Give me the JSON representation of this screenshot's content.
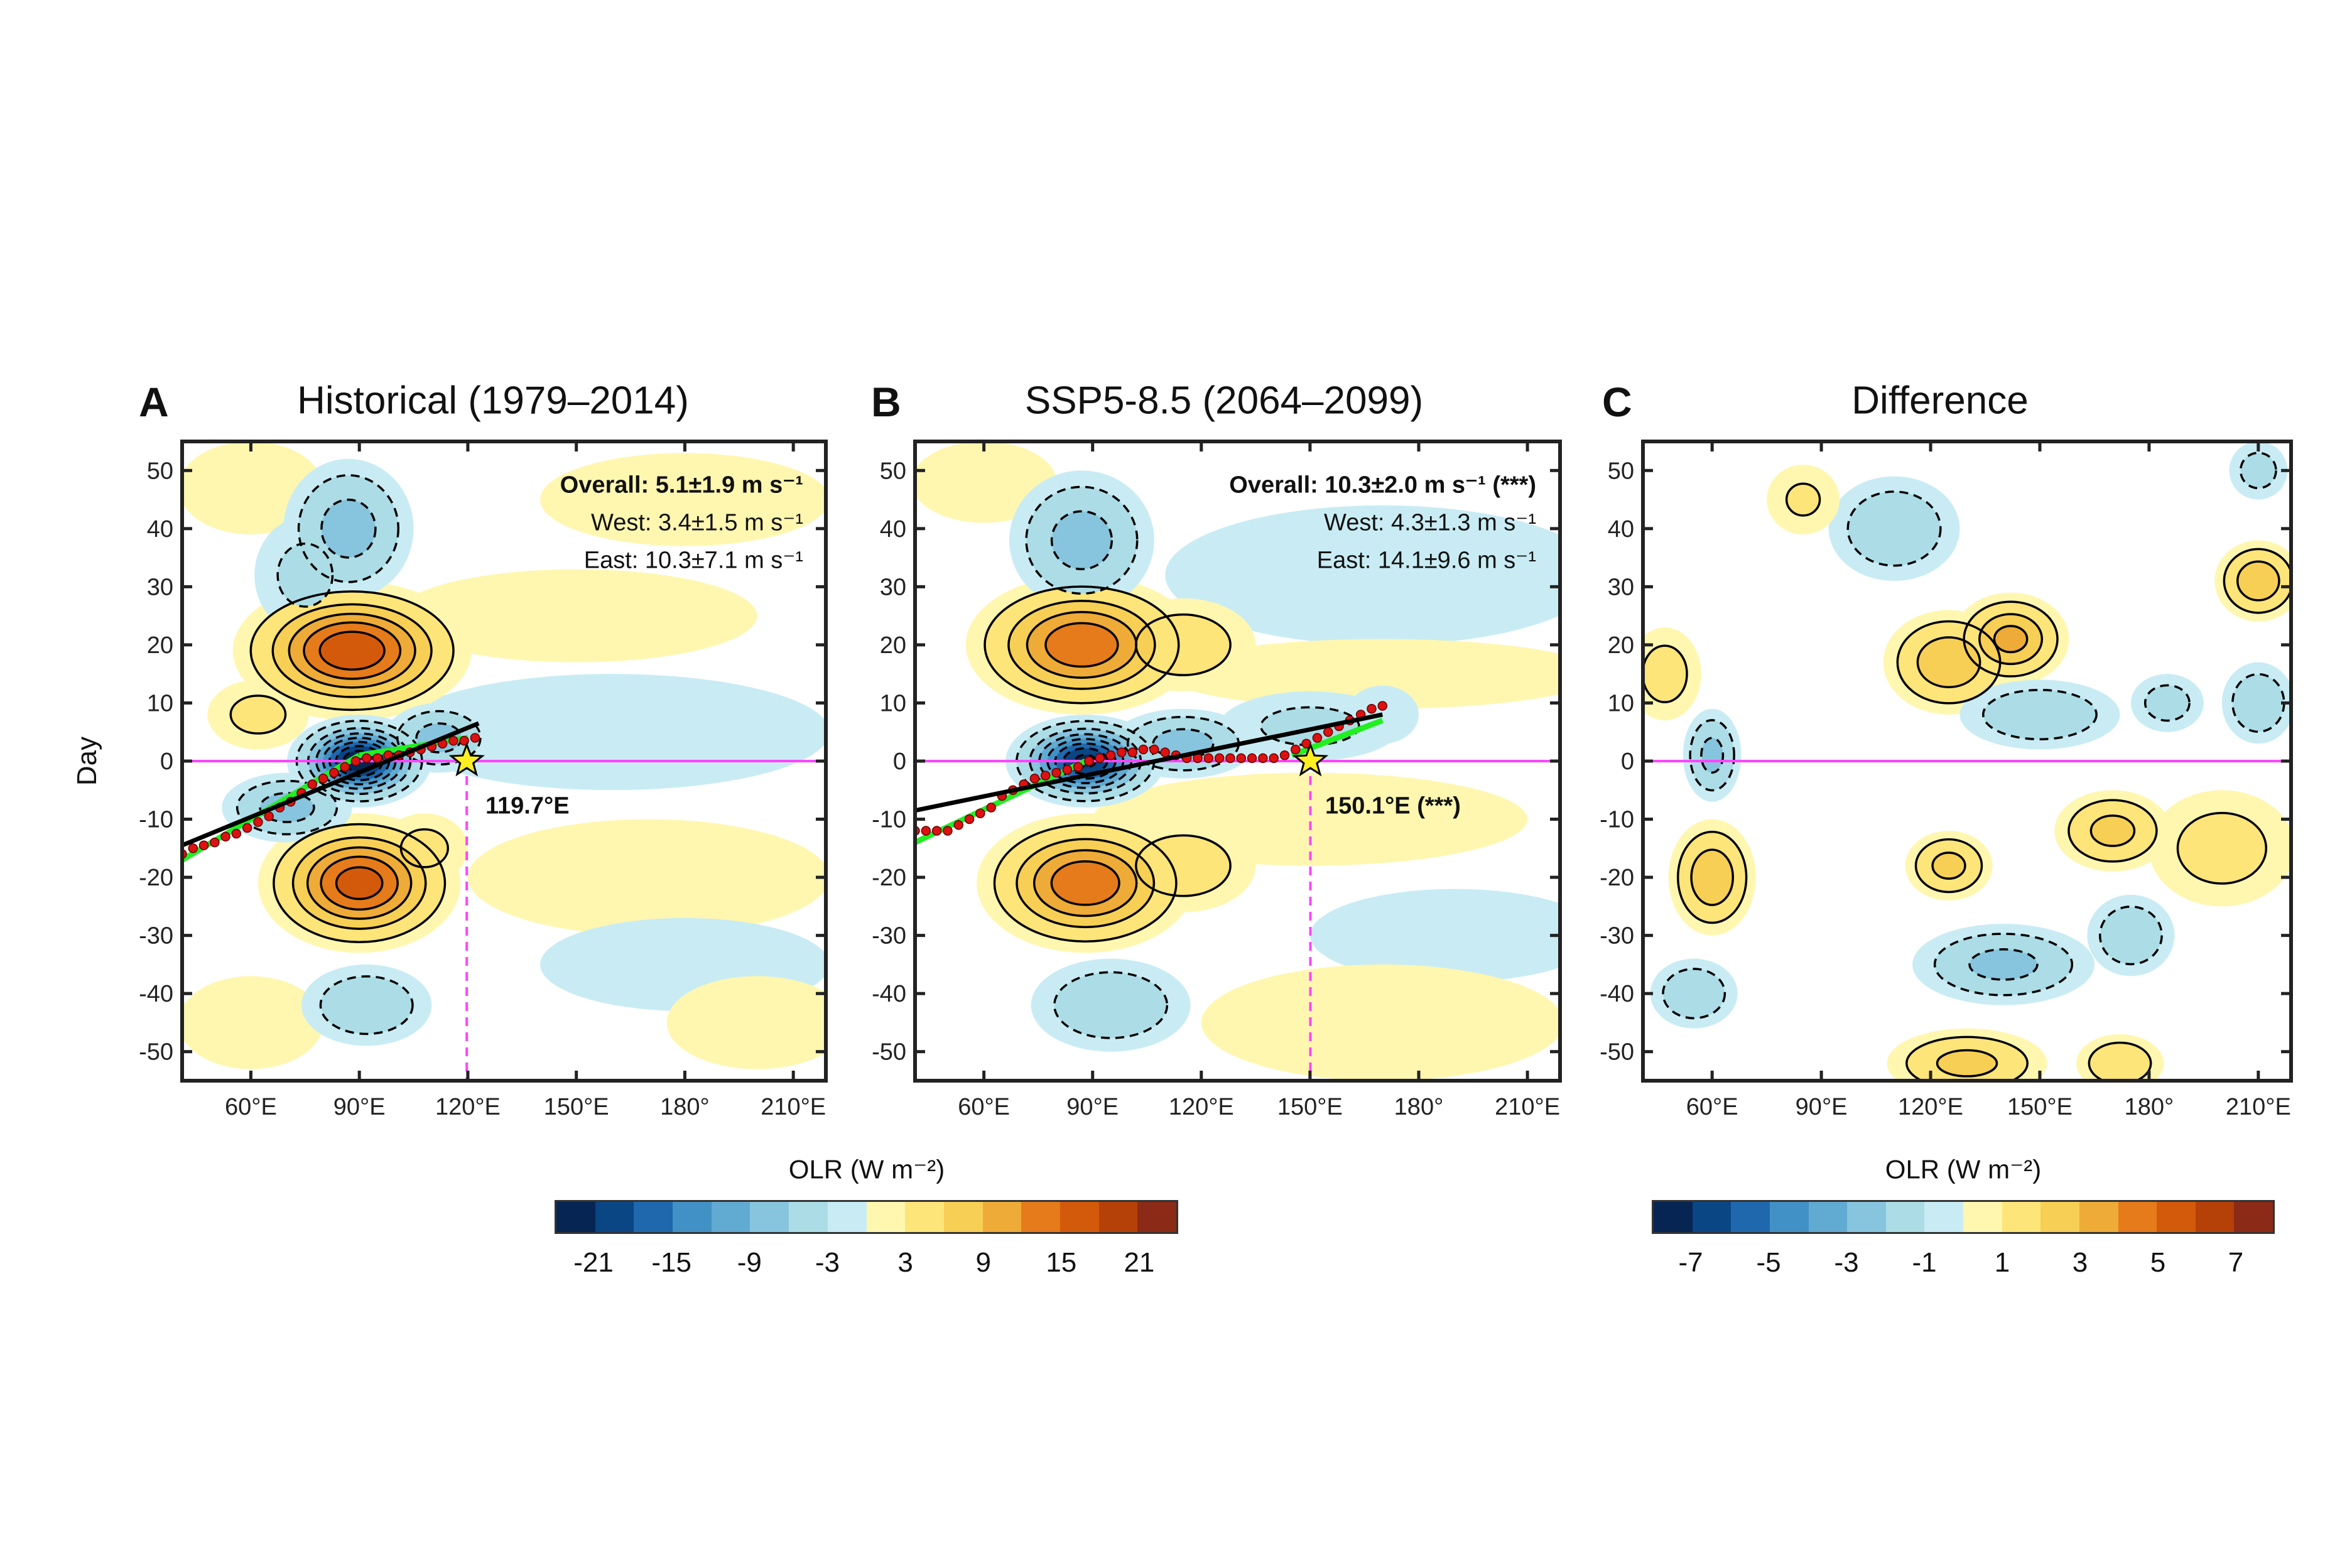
{
  "ylabel": "Day",
  "colorbar_colors": [
    "#062553",
    "#0a4584",
    "#1f68ad",
    "#4191c6",
    "#61aad2",
    "#87c4dd",
    "#acdde6",
    "#c9ecf4",
    "#fff7b0",
    "#fde57a",
    "#f7cf55",
    "#eeab38",
    "#e57b1a",
    "#d45a0b",
    "#b54008",
    "#8a2a17"
  ],
  "colorbars": [
    {
      "label": "OLR (W m⁻²)",
      "range": [
        -24,
        24
      ],
      "step": 3,
      "ticks": [
        "-21",
        "-15",
        "-9",
        "-3",
        "3",
        "9",
        "15",
        "21"
      ],
      "tick_values": [
        -21,
        -15,
        -9,
        -3,
        3,
        9,
        15,
        21
      ]
    },
    {
      "label": "OLR (W m⁻²)",
      "range": [
        -8,
        8
      ],
      "step": 1,
      "ticks": [
        "-7",
        "-5",
        "-3",
        "-1",
        "1",
        "3",
        "5",
        "7"
      ],
      "tick_values": [
        -7,
        -5,
        -3,
        -1,
        1,
        3,
        5,
        7
      ]
    }
  ],
  "accent_colors": {
    "zero_line": "#ff44ff",
    "regression": "#000000",
    "fit_segments": "#22ee22",
    "track_dots": "#dd1111",
    "star": "#ffee22"
  },
  "chart_data": [
    {
      "type": "heatmap",
      "panel_letter": "A",
      "title": "Historical (1979–2014)",
      "xlim": [
        41,
        219
      ],
      "ylim": [
        -55,
        55
      ],
      "xticks": [
        60,
        90,
        120,
        150,
        180,
        210
      ],
      "xticklabels": [
        "60°E",
        "90°E",
        "120°E",
        "150°E",
        "180°",
        "210°E"
      ],
      "yticks": [
        -50,
        -40,
        -30,
        -20,
        -10,
        0,
        10,
        20,
        30,
        40,
        50
      ],
      "yticklabels": [
        "-50",
        "-40",
        "-30",
        "-20",
        "-10",
        "0",
        "10",
        "20",
        "30",
        "40",
        "50"
      ],
      "colorbar": 0,
      "annotations": [
        "Overall: 5.1±1.9 m s⁻¹",
        "West: 3.4±1.5 m s⁻¹",
        "East: 10.3±7.1 m s⁻¹"
      ],
      "star": {
        "lon": 119.7,
        "day": 0,
        "label": "119.7°E"
      },
      "anomaly_features": [
        {
          "lon": 160,
          "day": 5,
          "rlon": 60,
          "rday": 10,
          "peak": -2.5
        },
        {
          "lon": 150,
          "day": 25,
          "rlon": 50,
          "rday": 8,
          "peak": 2.5
        },
        {
          "lon": 170,
          "day": -20,
          "rlon": 50,
          "rday": 10,
          "peak": 2.5
        },
        {
          "lon": 180,
          "day": -35,
          "rlon": 40,
          "rday": 8,
          "peak": -2.5
        },
        {
          "lon": 180,
          "day": 45,
          "rlon": 40,
          "rday": 8,
          "peak": 2.5
        },
        {
          "lon": 60,
          "day": -45,
          "rlon": 20,
          "rday": 8,
          "peak": 2.5
        },
        {
          "lon": 200,
          "day": -45,
          "rlon": 25,
          "rday": 8,
          "peak": 2.5
        },
        {
          "lon": 60,
          "day": 47,
          "rlon": 20,
          "rday": 8,
          "peak": 2.5
        },
        {
          "lon": 88,
          "day": 19,
          "rlon": 33,
          "rday": 12,
          "peak": 18
        },
        {
          "lon": 62,
          "day": 8,
          "rlon": 14,
          "rday": 6,
          "peak": 4
        },
        {
          "lon": 90,
          "day": -21,
          "rlon": 28,
          "rday": 12,
          "peak": 17
        },
        {
          "lon": 108,
          "day": -15,
          "rlon": 12,
          "rday": 6,
          "peak": 4
        },
        {
          "lon": 90,
          "day": 0,
          "rlon": 20,
          "rday": 8,
          "peak": -24
        },
        {
          "lon": 70,
          "day": -8,
          "rlon": 18,
          "rday": 6,
          "peak": -8
        },
        {
          "lon": 112,
          "day": 4,
          "rlon": 15,
          "rday": 6,
          "peak": -8
        },
        {
          "lon": 87,
          "day": 40,
          "rlon": 18,
          "rday": 12,
          "peak": -8
        },
        {
          "lon": 75,
          "day": 32,
          "rlon": 14,
          "rday": 10,
          "peak": -4
        },
        {
          "lon": 92,
          "day": -42,
          "rlon": 18,
          "rday": 7,
          "peak": -6
        }
      ],
      "track_points": {
        "lon": [
          41,
          44,
          47,
          50,
          53,
          56,
          59,
          62,
          65,
          68,
          71,
          74,
          77,
          80,
          83,
          86,
          89,
          92,
          95,
          98,
          101,
          104,
          107,
          110,
          113,
          116,
          119,
          122
        ],
        "day": [
          -16,
          -15,
          -14.5,
          -14,
          -13,
          -12.5,
          -11.5,
          -10.5,
          -9.5,
          -8,
          -7,
          -5.5,
          -4,
          -3,
          -2,
          -1,
          0,
          0.5,
          0.5,
          1,
          1,
          1.5,
          2,
          2.5,
          3,
          3.5,
          3.5,
          4
        ]
      },
      "regression_line": [
        [
          41,
          -14.5
        ],
        [
          123,
          6.5
        ]
      ],
      "fit_segments": [
        [
          [
            41,
            -17
          ],
          [
            90,
            1
          ]
        ],
        [
          [
            90,
            1
          ],
          [
            120,
            4
          ]
        ]
      ]
    },
    {
      "type": "heatmap",
      "panel_letter": "B",
      "title": "SSP5-8.5 (2064–2099)",
      "xlim": [
        41,
        219
      ],
      "ylim": [
        -55,
        55
      ],
      "xticks": [
        60,
        90,
        120,
        150,
        180,
        210
      ],
      "xticklabels": [
        "60°E",
        "90°E",
        "120°E",
        "150°E",
        "180°",
        "210°E"
      ],
      "yticks": [
        -50,
        -40,
        -30,
        -20,
        -10,
        0,
        10,
        20,
        30,
        40,
        50
      ],
      "yticklabels": [
        "-50",
        "-40",
        "-30",
        "-20",
        "-10",
        "0",
        "10",
        "20",
        "30",
        "40",
        "50"
      ],
      "colorbar": 0,
      "annotations": [
        "Overall: 10.3±2.0 m s⁻¹ (***)",
        "West: 4.3±1.3 m s⁻¹",
        "East: 14.1±9.6 m s⁻¹"
      ],
      "star": {
        "lon": 150.1,
        "day": 0,
        "label": "150.1°E (***)"
      },
      "anomaly_features": [
        {
          "lon": 170,
          "day": 32,
          "rlon": 60,
          "rday": 12,
          "peak": -2.5
        },
        {
          "lon": 170,
          "day": 15,
          "rlon": 60,
          "rday": 6,
          "peak": 2.5
        },
        {
          "lon": 150,
          "day": -10,
          "rlon": 60,
          "rday": 8,
          "peak": 2.5
        },
        {
          "lon": 190,
          "day": -30,
          "rlon": 40,
          "rday": 8,
          "peak": -2.5
        },
        {
          "lon": 170,
          "day": -45,
          "rlon": 50,
          "rday": 10,
          "peak": 2.5
        },
        {
          "lon": 60,
          "day": 48,
          "rlon": 20,
          "rday": 7,
          "peak": 2.5
        },
        {
          "lon": 87,
          "day": 20,
          "rlon": 32,
          "rday": 12,
          "peak": 15
        },
        {
          "lon": 115,
          "day": 20,
          "rlon": 20,
          "rday": 8,
          "peak": 5
        },
        {
          "lon": 88,
          "day": -21,
          "rlon": 30,
          "rday": 12,
          "peak": 15
        },
        {
          "lon": 115,
          "day": -18,
          "rlon": 20,
          "rday": 8,
          "peak": 5
        },
        {
          "lon": 88,
          "day": 0,
          "rlon": 22,
          "rday": 8,
          "peak": -22
        },
        {
          "lon": 115,
          "day": 3,
          "rlon": 20,
          "rday": 6,
          "peak": -8
        },
        {
          "lon": 150,
          "day": 6,
          "rlon": 25,
          "rday": 6,
          "peak": -4
        },
        {
          "lon": 170,
          "day": 8,
          "rlon": 10,
          "rday": 5,
          "peak": -3
        },
        {
          "lon": 87,
          "day": 38,
          "rlon": 20,
          "rday": 12,
          "peak": -8
        },
        {
          "lon": 95,
          "day": -42,
          "rlon": 22,
          "rday": 8,
          "peak": -6
        }
      ],
      "track_points": {
        "lon": [
          41,
          44,
          47,
          50,
          53,
          56,
          59,
          62,
          65,
          68,
          71,
          74,
          77,
          80,
          83,
          86,
          89,
          92,
          95,
          98,
          101,
          104,
          107,
          110,
          113,
          116,
          119,
          122,
          125,
          128,
          131,
          134,
          137,
          140,
          143,
          146,
          149,
          152,
          155,
          158,
          161,
          164,
          167,
          170
        ],
        "day": [
          -12,
          -12,
          -12,
          -12,
          -11,
          -10,
          -9,
          -8,
          -6,
          -5,
          -4,
          -3,
          -2.5,
          -2,
          -1.5,
          -1,
          0,
          0.5,
          1,
          1.5,
          1.5,
          2,
          2,
          1.5,
          1,
          0.5,
          0.5,
          0.5,
          0.5,
          0.5,
          0.5,
          0.5,
          0.5,
          0.5,
          1,
          2,
          3,
          4,
          5,
          6,
          7,
          8,
          9,
          9.5
        ]
      },
      "regression_line": [
        [
          41,
          -8.5
        ],
        [
          170,
          8
        ]
      ],
      "fit_segments": [
        [
          [
            41,
            -14
          ],
          [
            88,
            0
          ]
        ],
        [
          [
            145,
            1
          ],
          [
            170,
            7
          ]
        ]
      ]
    },
    {
      "type": "heatmap",
      "panel_letter": "C",
      "title": "Difference",
      "xlim": [
        41,
        219
      ],
      "ylim": [
        -55,
        55
      ],
      "xticks": [
        60,
        90,
        120,
        150,
        180,
        210
      ],
      "xticklabels": [
        "60°E",
        "90°E",
        "120°E",
        "150°E",
        "180°",
        "210°E"
      ],
      "yticks": [
        -50,
        -40,
        -30,
        -20,
        -10,
        0,
        10,
        20,
        30,
        40,
        50
      ],
      "yticklabels": [
        "-50",
        "-40",
        "-30",
        "-20",
        "-10",
        "0",
        "10",
        "20",
        "30",
        "40",
        "50"
      ],
      "colorbar": 1,
      "annotations": [],
      "anomaly_features": [
        {
          "lon": 125,
          "day": 17,
          "rlon": 18,
          "rday": 9,
          "peak": 3
        },
        {
          "lon": 142,
          "day": 21,
          "rlon": 16,
          "rday": 8,
          "peak": 3.5
        },
        {
          "lon": 210,
          "day": 31,
          "rlon": 12,
          "rday": 7,
          "peak": 3
        },
        {
          "lon": 60,
          "day": -20,
          "rlon": 12,
          "rday": 10,
          "peak": 3
        },
        {
          "lon": 125,
          "day": -18,
          "rlon": 12,
          "rday": 6,
          "peak": 2.5
        },
        {
          "lon": 170,
          "day": -12,
          "rlon": 16,
          "rday": 7,
          "peak": 2.5
        },
        {
          "lon": 130,
          "day": -52,
          "rlon": 22,
          "rday": 6,
          "peak": 2.5
        },
        {
          "lon": 172,
          "day": -52,
          "rlon": 12,
          "rday": 5,
          "peak": 2
        },
        {
          "lon": 47,
          "day": 15,
          "rlon": 10,
          "rday": 8,
          "peak": 1.5
        },
        {
          "lon": 200,
          "day": -15,
          "rlon": 20,
          "rday": 10,
          "peak": 1.5
        },
        {
          "lon": 110,
          "day": 40,
          "rlon": 18,
          "rday": 9,
          "peak": -2
        },
        {
          "lon": 150,
          "day": 8,
          "rlon": 22,
          "rday": 6,
          "peak": -2
        },
        {
          "lon": 60,
          "day": 1,
          "rlon": 8,
          "rday": 8,
          "peak": -2.5
        },
        {
          "lon": 140,
          "day": -35,
          "rlon": 25,
          "rday": 7,
          "peak": -2.5
        },
        {
          "lon": 175,
          "day": -30,
          "rlon": 12,
          "rday": 7,
          "peak": -2
        },
        {
          "lon": 55,
          "day": -40,
          "rlon": 12,
          "rday": 6,
          "peak": -2
        },
        {
          "lon": 210,
          "day": 10,
          "rlon": 10,
          "rday": 7,
          "peak": -2
        },
        {
          "lon": 185,
          "day": 10,
          "rlon": 10,
          "rday": 5,
          "peak": -1.5
        },
        {
          "lon": 210,
          "day": 50,
          "rlon": 8,
          "rday": 5,
          "peak": -1.5
        },
        {
          "lon": 85,
          "day": 45,
          "rlon": 10,
          "rday": 6,
          "peak": 1.2
        }
      ]
    }
  ]
}
